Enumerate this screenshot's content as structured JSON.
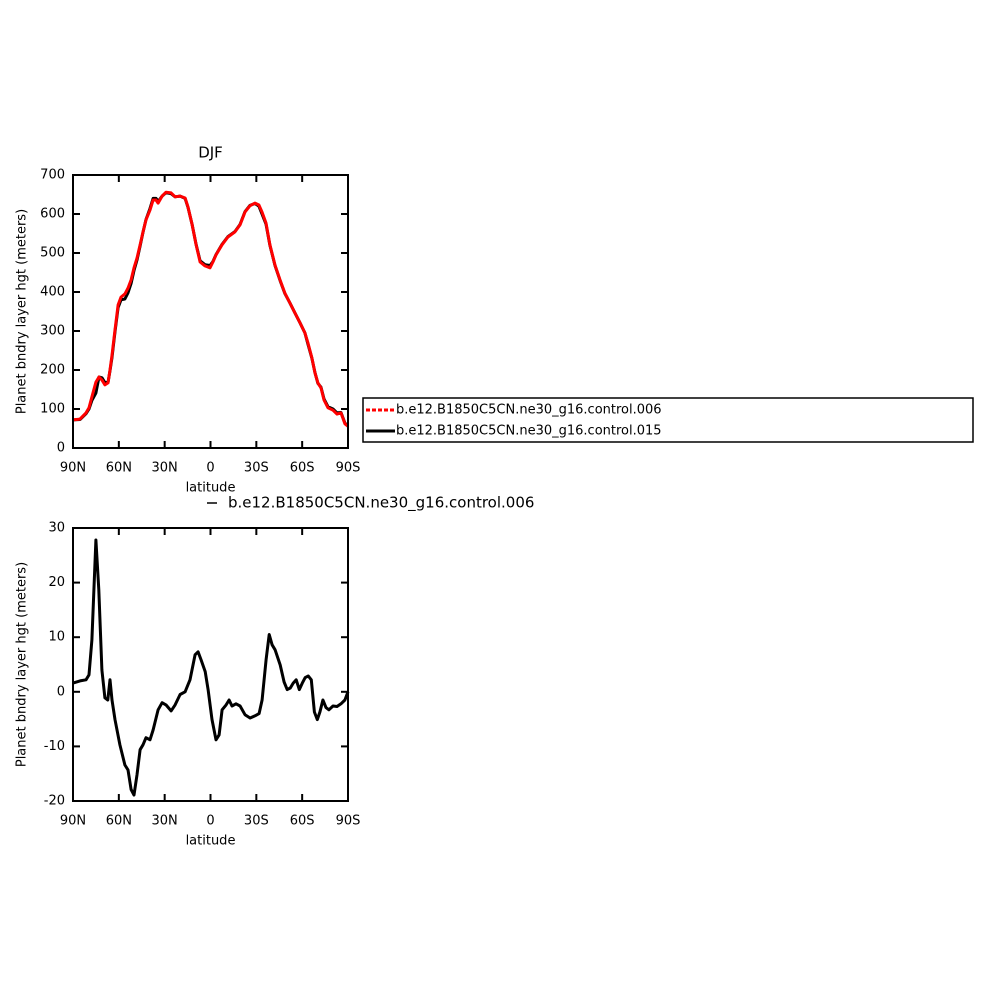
{
  "chart_data": [
    {
      "type": "line",
      "title": "DJF",
      "xlabel": "latitude",
      "ylabel": "Planet bndry layer hgt (meters)",
      "x": [
        90,
        85.4,
        81.5,
        79.5,
        77.6,
        75.0,
        73.0,
        71.0,
        69.1,
        67.1,
        65.8,
        64.5,
        62.5,
        60.5,
        58.6,
        56.0,
        54.0,
        52.0,
        50.1,
        48.1,
        46.1,
        44.2,
        42.2,
        39.6,
        37.6,
        35.7,
        34.3,
        31.7,
        29.1,
        25.8,
        23.2,
        19.9,
        16.6,
        14.7,
        12.0,
        9.4,
        6.8,
        3.6,
        0.3,
        -1.6,
        -3.6,
        -7.5,
        -11.4,
        -16.0,
        -19.3,
        -22.6,
        -25.8,
        -29.1,
        -31.7,
        -33.7,
        -36.3,
        -38.9,
        -42.2,
        -45.5,
        -48.7,
        -52.0,
        -55.3,
        -58.6,
        -61.8,
        -63.8,
        -66.4,
        -68.4,
        -70.3,
        -72.3,
        -74.3,
        -76.9,
        -80.2,
        -82.8,
        -85.4,
        -88.0,
        -90
      ],
      "series": [
        {
          "name": "b.e12.B1850C5CN.ne30_g16.control.006",
          "color": "#ff0000",
          "values": [
            72,
            74,
            90,
            103,
            131,
            169,
            182,
            174,
            162,
            167,
            200,
            238,
            303,
            367,
            387,
            395,
            410,
            431,
            462,
            487,
            521,
            554,
            585,
            610,
            636,
            636,
            628,
            646,
            656,
            654,
            644,
            646,
            641,
            618,
            572,
            521,
            477,
            467,
            462,
            477,
            495,
            521,
            541,
            554,
            572,
            605,
            621,
            628,
            623,
            605,
            577,
            521,
            469,
            431,
            397,
            372,
            346,
            321,
            295,
            269,
            231,
            192,
            167,
            154,
            123,
            103,
            97,
            87,
            90,
            62,
            56
          ]
        },
        {
          "name": "b.e12.B1850C5CN.ne30_g16.control.015",
          "color": "#000000",
          "values": [
            72,
            73,
            88,
            100,
            122,
            141,
            182,
            180,
            168,
            168,
            198,
            232,
            298,
            360,
            380,
            382,
            398,
            422,
            455,
            482,
            518,
            553,
            586,
            614,
            640,
            640,
            632,
            646,
            655,
            652,
            644,
            646,
            640,
            617,
            572,
            522,
            480,
            470,
            468,
            478,
            496,
            522,
            542,
            555,
            573,
            606,
            622,
            627,
            620,
            600,
            574,
            520,
            468,
            430,
            396,
            372,
            346,
            321,
            295,
            266,
            230,
            193,
            166,
            156,
            126,
            106,
            100,
            90,
            91,
            64,
            56
          ]
        }
      ],
      "xlim": [
        90,
        -90
      ],
      "xticks": [
        {
          "value": 90,
          "label": "90N"
        },
        {
          "value": 60,
          "label": "60N"
        },
        {
          "value": 30,
          "label": "30N"
        },
        0,
        {
          "value": -30,
          "label": "30S"
        },
        {
          "value": -60,
          "label": "60S"
        },
        {
          "value": -90,
          "label": "90S"
        }
      ],
      "ylim": [
        0,
        700
      ],
      "yticks": [
        0,
        100,
        200,
        300,
        400,
        500,
        600,
        700
      ],
      "legend": "right"
    },
    {
      "type": "line",
      "xlabel": "latitude",
      "ylabel": "Planet bndry layer hgt (meters)",
      "x": [
        90,
        85.4,
        81.5,
        79.5,
        77.6,
        75.0,
        73.1,
        71.1,
        69.1,
        67.2,
        65.8,
        64.5,
        62.5,
        59.3,
        56.0,
        54.0,
        52.0,
        50.1,
        48.1,
        46.1,
        44.2,
        42.2,
        39.6,
        37.6,
        34.3,
        31.7,
        29.1,
        25.8,
        23.2,
        19.9,
        16.6,
        13.4,
        10.1,
        8.1,
        6.2,
        3.5,
        1.6,
        -1.0,
        -3.6,
        -5.6,
        -7.6,
        -10.2,
        -12.2,
        -14.1,
        -16.7,
        -19.4,
        -22.6,
        -25.9,
        -29.2,
        -31.8,
        -33.8,
        -36.4,
        -38.4,
        -40.3,
        -42.3,
        -45.6,
        -48.2,
        -50.2,
        -52.2,
        -54.1,
        -56.1,
        -58.1,
        -60.1,
        -62.0,
        -64.0,
        -66.0,
        -68.0,
        -69.9,
        -71.6,
        -73.6,
        -75.6,
        -77.5,
        -80.2,
        -82.8,
        -85.4,
        -88.0,
        -90
      ],
      "series": [
        {
          "name": "b.e12.B1850C5CN.ne30_g16.control.006",
          "color": "#000000",
          "values": [
            1.6,
            2.0,
            2.2,
            3.1,
            9.5,
            27.8,
            18.7,
            4.0,
            -1.1,
            -1.5,
            2.2,
            -1.5,
            -5.1,
            -9.7,
            -13.4,
            -14.3,
            -17.9,
            -18.9,
            -15.2,
            -10.6,
            -9.7,
            -8.4,
            -8.8,
            -7.0,
            -3.3,
            -2.0,
            -2.4,
            -3.5,
            -2.4,
            -0.5,
            0,
            2.2,
            6.8,
            7.3,
            5.9,
            3.7,
            0.4,
            -5.1,
            -8.8,
            -7.9,
            -3.3,
            -2.4,
            -1.5,
            -2.6,
            -2.2,
            -2.6,
            -4.2,
            -4.8,
            -4.4,
            -4.0,
            -1.5,
            5.9,
            10.5,
            8.6,
            7.7,
            4.9,
            1.8,
            0.4,
            0.7,
            1.6,
            2.2,
            0.4,
            1.6,
            2.6,
            2.9,
            2.2,
            -3.7,
            -5.1,
            -3.7,
            -1.5,
            -2.9,
            -3.3,
            -2.6,
            -2.7,
            -2.2,
            -1.5,
            0
          ]
        }
      ],
      "xlim": [
        90,
        -90
      ],
      "xticks": [
        {
          "value": 90,
          "label": "90N"
        },
        {
          "value": 60,
          "label": "60N"
        },
        {
          "value": 30,
          "label": "30N"
        },
        0,
        {
          "value": -30,
          "label": "30S"
        },
        {
          "value": -60,
          "label": "60S"
        },
        {
          "value": -90,
          "label": "90S"
        }
      ],
      "ylim": [
        -20,
        30
      ],
      "yticks": [
        -20,
        -10,
        0,
        10,
        20,
        30
      ],
      "legend": "top"
    }
  ]
}
